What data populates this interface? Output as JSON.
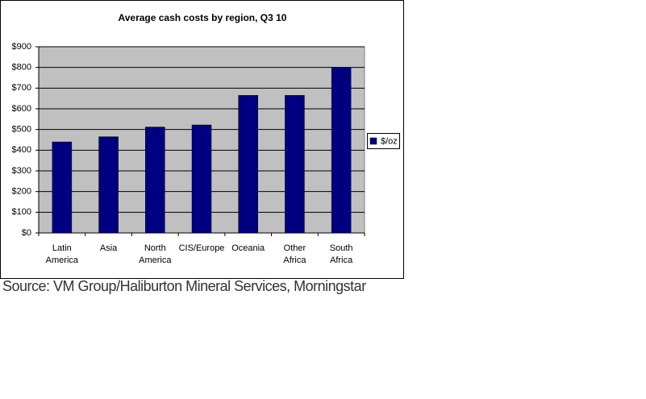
{
  "chart_data": {
    "type": "bar",
    "title": "Average cash costs by region, Q3 10",
    "categories": [
      "Latin America",
      "Asia",
      "North America",
      "CIS/Europe",
      "Oceania",
      "Other Africa",
      "South Africa"
    ],
    "series": [
      {
        "name": "$/oz",
        "color": "#000080",
        "values": [
          440,
          465,
          512,
          522,
          665,
          665,
          800
        ]
      }
    ],
    "ylim": [
      0,
      900
    ],
    "yticks": [
      {
        "value": 0,
        "label": "$0"
      },
      {
        "value": 100,
        "label": "$100"
      },
      {
        "value": 200,
        "label": "$200"
      },
      {
        "value": 300,
        "label": "$300"
      },
      {
        "value": 400,
        "label": "$400"
      },
      {
        "value": 500,
        "label": "$500"
      },
      {
        "value": 600,
        "label": "$600"
      },
      {
        "value": 700,
        "label": "$700"
      },
      {
        "value": 800,
        "label": "$800"
      },
      {
        "value": 900,
        "label": "$900"
      }
    ],
    "grid": true,
    "legend": "right",
    "plot_background": "#c0c0c0",
    "source": "Source: VM Group/Haliburton Mineral Services, Morningstar"
  }
}
